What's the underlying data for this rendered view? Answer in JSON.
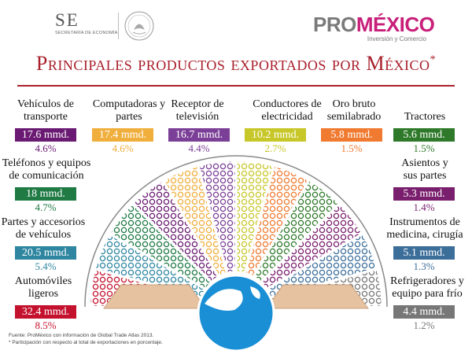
{
  "header": {
    "se_logo": "SE",
    "se_subtitle": "SECRETARÍA DE ECONOMÍA",
    "promexico_pro": "PRO",
    "promexico_mexico": "MÉXICO",
    "promexico_subtitle": "Inversión y Comercio"
  },
  "title": "Principales productos exportados por México",
  "title_mark": "*",
  "footer": {
    "source": "Fuente: ProMéxico con información de Global Trade Atlas 2013.",
    "note": "* Participación con respecto al total de exportaciones en porcentaje."
  },
  "colors": {
    "title": "#a9202c",
    "globe": "#1a8fd6",
    "sand": "#e6c2a0"
  },
  "chart_data": {
    "type": "pie",
    "series": [
      {
        "name": "Automóviles ligeros",
        "value_label": "32.4 mmd.",
        "value": 32.4,
        "percent_label": "8.5%",
        "percent": 8.5,
        "color": "#c4122e",
        "icon": "car-icon"
      },
      {
        "name": "Partes y accesorios de vehículos",
        "value_label": "20.5 mmd.",
        "value": 20.5,
        "percent_label": "5.4%",
        "percent": 5.4,
        "color": "#2e86a0",
        "icon": "steering-wheel-icon"
      },
      {
        "name": "Teléfonos y equipos de comunicación",
        "value_label": "18 mmd.",
        "value": 18,
        "percent_label": "4.7%",
        "percent": 4.7,
        "color": "#1f7a44",
        "icon": "phone-icon"
      },
      {
        "name": "Vehículos de transporte",
        "value_label": "17.6 mmd.",
        "value": 17.6,
        "percent_label": "4.6%",
        "percent": 4.6,
        "color": "#6a1a72",
        "icon": "truck-icon"
      },
      {
        "name": "Computadoras y partes",
        "value_label": "17.4 mmd.",
        "value": 17.4,
        "percent_label": "4.6%",
        "percent": 4.6,
        "color": "#f0ae3c",
        "icon": "computer-icon"
      },
      {
        "name": "Receptor de televisión",
        "value_label": "16.7 mmd.",
        "value": 16.7,
        "percent_label": "4.4%",
        "percent": 4.4,
        "color": "#7b3f97",
        "icon": "tv-icon"
      },
      {
        "name": "Conductores de electricidad",
        "value_label": "10.2 mmd.",
        "value": 10.2,
        "percent_label": "2.7%",
        "percent": 2.7,
        "color": "#c7c72a",
        "icon": "cable-icon"
      },
      {
        "name": "Oro bruto semilabrado",
        "value_label": "5.8 mmd.",
        "value": 5.8,
        "percent_label": "1.5%",
        "percent": 1.5,
        "color": "#f07a30",
        "icon": "gold-bar-icon"
      },
      {
        "name": "Tractores",
        "value_label": "5.6 mmd.",
        "value": 5.6,
        "percent_label": "1.5%",
        "percent": 1.5,
        "color": "#2f7a2a",
        "icon": "tractor-icon"
      },
      {
        "name": "Asientos y sus partes",
        "value_label": "5.3 mmd.",
        "value": 5.3,
        "percent_label": "1.4%",
        "percent": 1.4,
        "color": "#7a1f6e",
        "icon": "seat-icon"
      },
      {
        "name": "Instrumentos de medicina, cirugía",
        "value_label": "5.1 mmd.",
        "value": 5.1,
        "percent_label": "1.3%",
        "percent": 1.3,
        "color": "#3c6e9a",
        "icon": "medical-icon"
      },
      {
        "name": "Refrigeradores y equipo para frío",
        "value_label": "4.4 mmd.",
        "value": 4.4,
        "percent_label": "1.2%",
        "percent": 1.2,
        "color": "#777777",
        "icon": "fridge-icon"
      }
    ]
  }
}
